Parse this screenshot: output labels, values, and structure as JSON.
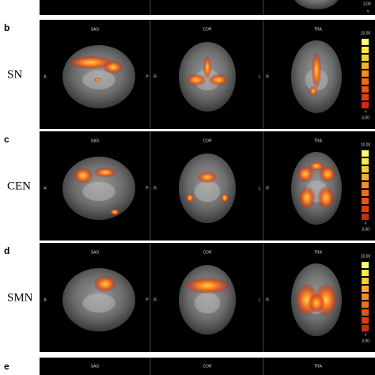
{
  "top_strip": {
    "scale_min": "3.00",
    "arrow": "v"
  },
  "panels": [
    {
      "letter": "b",
      "name": "SN",
      "views": [
        "SAG",
        "COR",
        "TRA"
      ],
      "orientation": [
        "A",
        "P",
        "R",
        "L",
        "R"
      ],
      "scale_max": "10.00",
      "scale_min": "3.00",
      "arrow": "v"
    },
    {
      "letter": "c",
      "name": "CEN",
      "views": [
        "SAG",
        "COR",
        "TRA"
      ],
      "orientation": [
        "A",
        "P",
        "R",
        "L",
        "R"
      ],
      "scale_max": "10.00",
      "scale_min": "3.00",
      "arrow": "v"
    },
    {
      "letter": "d",
      "name": "SMN",
      "views": [
        "SAG",
        "COR",
        "TRA"
      ],
      "orientation": [
        "A",
        "P",
        "R",
        "L",
        "R"
      ],
      "scale_max": "10.00",
      "scale_min": "3.00",
      "arrow": "v"
    }
  ],
  "bottom_panel": {
    "letter": "e",
    "views": [
      "SAG",
      "COR",
      "TRA"
    ]
  }
}
